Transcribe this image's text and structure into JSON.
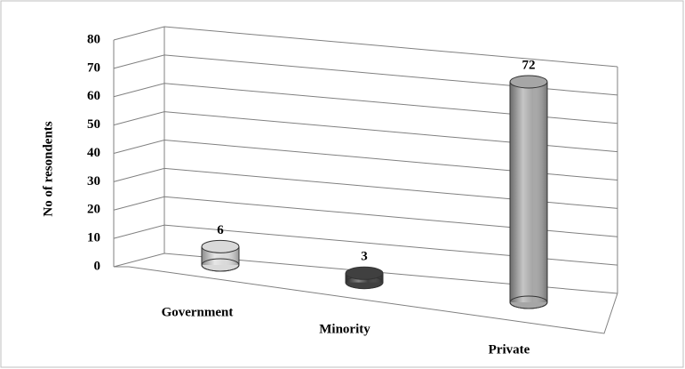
{
  "chart_data": {
    "type": "bar3d",
    "categories": [
      "Government",
      "Minority",
      "Private"
    ],
    "values": [
      6,
      3,
      72
    ],
    "colors": [
      "#d9d9d9",
      "#404040",
      "#a6a6a6"
    ],
    "y_label": "No of resondents",
    "ylim": [
      0,
      80
    ],
    "yticks": [
      0,
      10,
      20,
      30,
      40,
      50,
      60,
      70,
      80
    ],
    "grid": true
  }
}
